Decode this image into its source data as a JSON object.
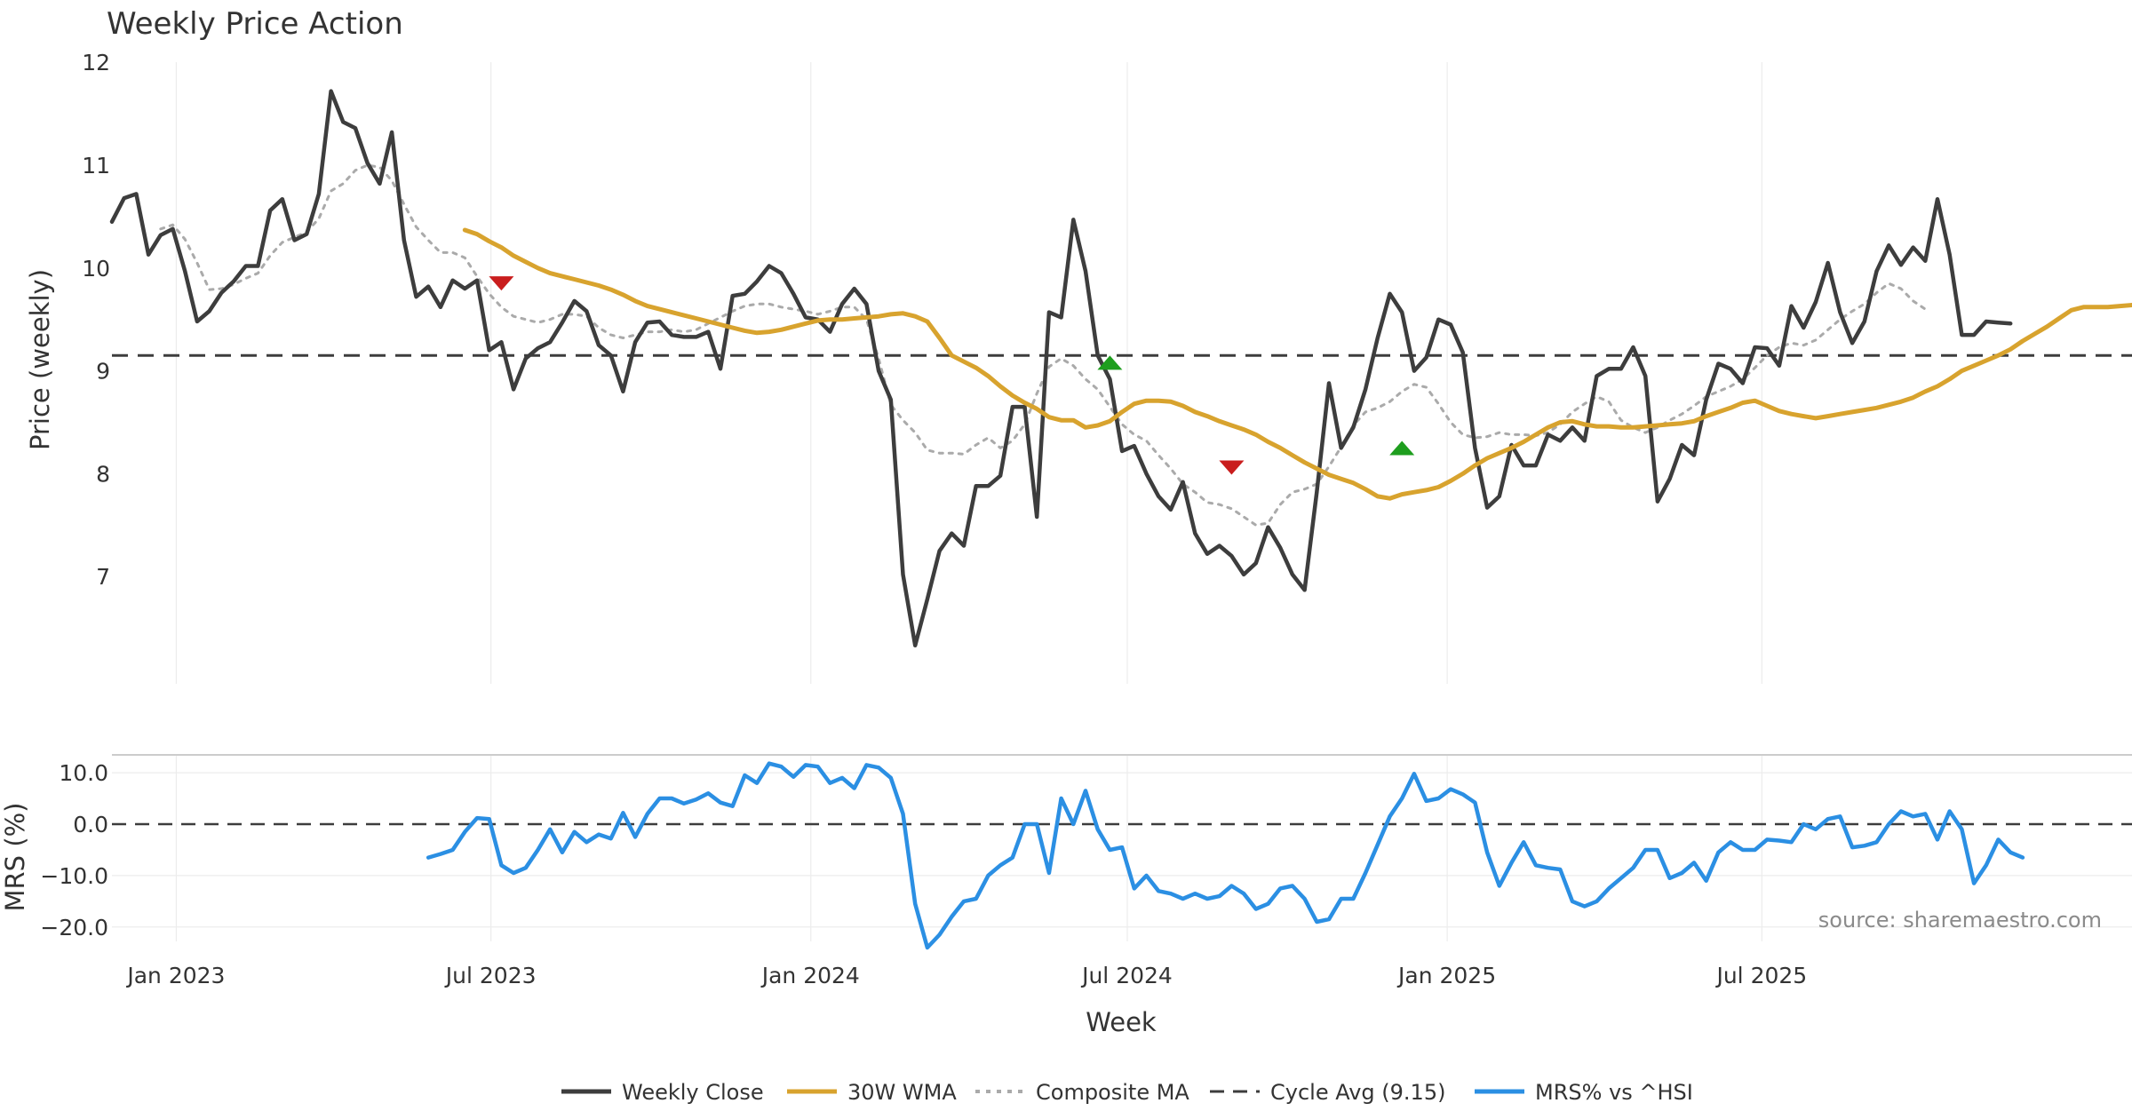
{
  "chart_data": [
    {
      "type": "line",
      "title": "Weekly Price Action",
      "xlabel": "Week",
      "ylabel": "Price (weekly)",
      "ylim": [
        6,
        12
      ],
      "yticks": [
        "7",
        "8",
        "9",
        "10",
        "11",
        "12"
      ],
      "x_start": "2022-11-25",
      "x_step_weeks": 1,
      "xticks": [
        {
          "date": "2023-01-01",
          "label": "Jan 2023"
        },
        {
          "date": "2023-07-01",
          "label": "Jul 2023"
        },
        {
          "date": "2024-01-01",
          "label": "Jan 2024"
        },
        {
          "date": "2024-07-01",
          "label": "Jul 2024"
        },
        {
          "date": "2025-01-01",
          "label": "Jan 2025"
        },
        {
          "date": "2025-07-01",
          "label": "Jul 2025"
        }
      ],
      "cycle_avg": 9.15,
      "series": [
        {
          "name": "Weekly Close",
          "color": "#3d3d3d",
          "values": [
            10.45,
            10.68,
            10.72,
            10.13,
            10.32,
            10.38,
            9.97,
            9.48,
            9.58,
            9.76,
            9.87,
            10.02,
            10.02,
            10.56,
            10.67,
            10.27,
            10.33,
            10.72,
            11.72,
            11.42,
            11.36,
            11.02,
            10.82,
            11.32,
            10.27,
            9.72,
            9.82,
            9.62,
            9.88,
            9.8,
            9.88,
            9.2,
            9.28,
            8.82,
            9.12,
            9.22,
            9.28,
            9.47,
            9.68,
            9.58,
            9.25,
            9.15,
            8.8,
            9.28,
            9.47,
            9.48,
            9.35,
            9.33,
            9.33,
            9.38,
            9.02,
            9.73,
            9.75,
            9.87,
            10.02,
            9.95,
            9.75,
            9.52,
            9.5,
            9.38,
            9.65,
            9.8,
            9.65,
            9.0,
            8.72,
            7.02,
            6.33,
            6.78,
            7.25,
            7.42,
            7.3,
            7.88,
            7.88,
            7.98,
            8.65,
            8.65,
            7.58,
            9.57,
            9.52,
            10.47,
            9.97,
            9.15,
            8.92,
            8.22,
            8.27,
            8.0,
            7.78,
            7.65,
            7.92,
            7.42,
            7.22,
            7.3,
            7.2,
            7.02,
            7.13,
            7.48,
            7.28,
            7.02,
            6.87,
            7.82,
            8.88,
            8.25,
            8.45,
            8.82,
            9.32,
            9.75,
            9.57,
            9.0,
            9.13,
            9.5,
            9.45,
            9.18,
            8.25,
            7.67,
            7.78,
            8.28,
            8.08,
            8.08,
            8.38,
            8.32,
            8.45,
            8.32,
            8.95,
            9.02,
            9.02,
            9.23,
            8.95,
            7.73,
            7.95,
            8.28,
            8.18,
            8.72,
            9.07,
            9.02,
            8.88,
            9.23,
            9.22,
            9.05,
            9.63,
            9.42,
            9.67,
            10.05,
            9.57,
            9.27,
            9.48,
            9.97,
            10.22,
            10.03,
            10.2,
            10.07,
            10.67,
            10.13,
            9.35,
            9.35,
            9.48,
            9.47,
            9.46
          ]
        },
        {
          "name": "30W WMA",
          "color": "#d8a32e",
          "start_index": 29,
          "values": [
            10.37,
            10.33,
            10.26,
            10.2,
            10.12,
            10.06,
            10.0,
            9.95,
            9.92,
            9.89,
            9.86,
            9.83,
            9.79,
            9.74,
            9.68,
            9.63,
            9.6,
            9.57,
            9.54,
            9.51,
            9.48,
            9.45,
            9.42,
            9.39,
            9.37,
            9.38,
            9.4,
            9.43,
            9.46,
            9.49,
            9.5,
            9.5,
            9.51,
            9.52,
            9.53,
            9.55,
            9.56,
            9.53,
            9.48,
            9.32,
            9.15,
            9.09,
            9.03,
            8.95,
            8.85,
            8.76,
            8.69,
            8.63,
            8.55,
            8.52,
            8.52,
            8.45,
            8.47,
            8.51,
            8.6,
            8.68,
            8.71,
            8.71,
            8.7,
            8.66,
            8.6,
            8.56,
            8.51,
            8.47,
            8.43,
            8.38,
            8.31,
            8.25,
            8.18,
            8.11,
            8.05,
            7.99,
            7.95,
            7.91,
            7.85,
            7.78,
            7.76,
            7.8,
            7.82,
            7.84,
            7.87,
            7.93,
            8.0,
            8.08,
            8.15,
            8.2,
            8.25,
            8.31,
            8.38,
            8.45,
            8.5,
            8.51,
            8.48,
            8.46,
            8.46,
            8.45,
            8.45,
            8.46,
            8.47,
            8.48,
            8.49,
            8.51,
            8.56,
            8.6,
            8.64,
            8.69,
            8.71,
            8.66,
            8.61,
            8.58,
            8.56,
            8.54,
            8.56,
            8.58,
            8.6,
            8.62,
            8.64,
            8.67,
            8.7,
            8.74,
            8.8,
            8.85,
            8.92,
            9.0,
            9.05,
            9.1,
            9.15,
            9.21,
            9.29,
            9.36,
            9.43,
            9.51,
            9.59,
            9.62,
            9.62,
            9.62,
            9.63,
            9.64
          ]
        },
        {
          "name": "Composite MA",
          "color": "#aaaaaa",
          "start_index": 4,
          "values": [
            10.38,
            10.42,
            10.28,
            10.05,
            9.79,
            9.8,
            9.84,
            9.9,
            9.95,
            10.12,
            10.25,
            10.3,
            10.35,
            10.48,
            10.75,
            10.82,
            10.95,
            11.0,
            10.98,
            10.85,
            10.62,
            10.4,
            10.27,
            10.15,
            10.15,
            10.1,
            9.92,
            9.75,
            9.62,
            9.53,
            9.5,
            9.47,
            9.5,
            9.55,
            9.55,
            9.53,
            9.42,
            9.35,
            9.32,
            9.35,
            9.38,
            9.38,
            9.4,
            9.38,
            9.4,
            9.46,
            9.52,
            9.58,
            9.63,
            9.65,
            9.65,
            9.62,
            9.6,
            9.58,
            9.55,
            9.58,
            9.62,
            9.62,
            9.5,
            9.12,
            8.67,
            8.52,
            8.4,
            8.23,
            8.2,
            8.2,
            8.19,
            8.28,
            8.35,
            8.25,
            8.32,
            8.48,
            8.78,
            9.04,
            9.12,
            9.05,
            8.92,
            8.82,
            8.65,
            8.48,
            8.38,
            8.32,
            8.18,
            8.05,
            7.9,
            7.82,
            7.72,
            7.7,
            7.66,
            7.58,
            7.5,
            7.52,
            7.7,
            7.82,
            7.85,
            7.9,
            8.07,
            8.26,
            8.47,
            8.6,
            8.64,
            8.7,
            8.8,
            8.87,
            8.84,
            8.68,
            8.5,
            8.38,
            8.35,
            8.36,
            8.4,
            8.38,
            8.38,
            8.37,
            8.4,
            8.48,
            8.6,
            8.68,
            8.75,
            8.7,
            8.52,
            8.45,
            8.4,
            8.45,
            8.52,
            8.58,
            8.66,
            8.75,
            8.8,
            8.85,
            8.92,
            9.03,
            9.15,
            9.23,
            9.27,
            9.25,
            9.3,
            9.4,
            9.5,
            9.58,
            9.65,
            9.76,
            9.85,
            9.8,
            9.68,
            9.6
          ]
        }
      ],
      "signals": [
        {
          "type": "sell",
          "index": 32,
          "value": 9.85,
          "color": "#c91d1d"
        },
        {
          "type": "buy",
          "index": 82,
          "value": 9.08,
          "color": "#1e9e1e"
        },
        {
          "type": "sell",
          "index": 92,
          "value": 8.06,
          "color": "#c91d1d"
        },
        {
          "type": "buy",
          "index": 106,
          "value": 8.25,
          "color": "#1e9e1e"
        }
      ]
    },
    {
      "type": "line",
      "xlabel": "Week",
      "ylabel": "MRS (%)",
      "ylim": [
        -24,
        13
      ],
      "yticks": [
        "−20.0",
        "−10.0",
        "0.0",
        "10.0"
      ],
      "series": [
        {
          "name": "MRS% vs ^HSI",
          "color": "#2b8fe3",
          "start_index": 26,
          "values": [
            -6.5,
            -5.8,
            -5.0,
            -1.5,
            1.2,
            1.0,
            -8.0,
            -9.5,
            -8.5,
            -5.0,
            -1.0,
            -5.5,
            -1.5,
            -3.5,
            -2.0,
            -2.8,
            2.2,
            -2.5,
            2.0,
            5.0,
            5.0,
            4.0,
            4.8,
            6.0,
            4.2,
            3.5,
            9.5,
            8.0,
            11.8,
            11.2,
            9.2,
            11.5,
            11.2,
            8.0,
            9.0,
            7.0,
            11.5,
            11.0,
            9.0,
            2.0,
            -15.5,
            -24.0,
            -21.5,
            -18.0,
            -15.0,
            -14.5,
            -10.0,
            -8.0,
            -6.5,
            0.0,
            0.0,
            -9.5,
            5.0,
            0.0,
            6.5,
            -1.0,
            -5.0,
            -4.5,
            -12.5,
            -10.0,
            -13.0,
            -13.5,
            -14.5,
            -13.5,
            -14.5,
            -14.0,
            -12.0,
            -13.5,
            -16.5,
            -15.5,
            -12.5,
            -12.0,
            -14.5,
            -19.0,
            -18.5,
            -14.5,
            -14.5,
            -9.5,
            -4.0,
            1.5,
            5.0,
            9.8,
            4.5,
            5.0,
            6.8,
            5.8,
            4.2,
            -5.5,
            -12.0,
            -7.5,
            -3.5,
            -8.0,
            -8.5,
            -8.8,
            -15.0,
            -16.0,
            -15.0,
            -12.5,
            -10.5,
            -8.5,
            -5.0,
            -5.0,
            -10.5,
            -9.5,
            -7.5,
            -11.0,
            -5.5,
            -3.5,
            -5.0,
            -5.0,
            -3.0,
            -3.2,
            -3.5,
            0.0,
            -1.0,
            1.0,
            1.5,
            -4.5,
            -4.2,
            -3.5,
            0.0,
            2.5,
            1.5,
            2.0,
            -3.0,
            2.5,
            -1.0,
            -11.5,
            -8.0,
            -3.0,
            -5.5,
            -6.5
          ]
        }
      ],
      "source": "source: sharemaestro.com"
    }
  ],
  "legend": [
    {
      "label": "Weekly Close",
      "color": "#3d3d3d",
      "style": "solid"
    },
    {
      "label": "30W WMA",
      "color": "#d8a32e",
      "style": "solid"
    },
    {
      "label": "Composite MA",
      "color": "#aaaaaa",
      "style": "dotted"
    },
    {
      "label": "Cycle Avg (9.15)",
      "color": "#3d3d3d",
      "style": "dashed"
    },
    {
      "label": "MRS% vs ^HSI",
      "color": "#2b8fe3",
      "style": "solid"
    }
  ]
}
